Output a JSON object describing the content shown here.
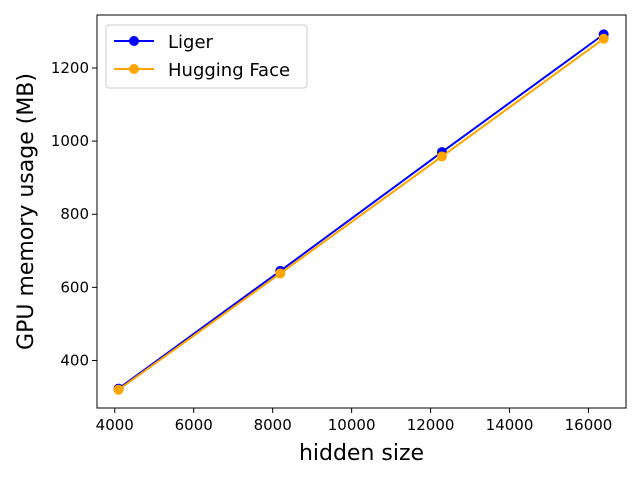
{
  "chart_data": {
    "type": "line",
    "title": "",
    "xlabel": "hidden size",
    "ylabel": "GPU memory usage (MB)",
    "xlim": [
      3550,
      16950
    ],
    "ylim": [
      270,
      1345
    ],
    "xticks": [
      4000,
      6000,
      8000,
      10000,
      12000,
      14000,
      16000
    ],
    "yticks": [
      400,
      600,
      800,
      1000,
      1200
    ],
    "grid": false,
    "legend_position": "top-left",
    "x": [
      4096,
      8192,
      12288,
      16384
    ],
    "series": [
      {
        "name": "Liger",
        "color": "#0000ff",
        "values": [
          323,
          645,
          970,
          1292
        ],
        "marker": "circle"
      },
      {
        "name": "Hugging Face",
        "color": "#ffa500",
        "values": [
          320,
          638,
          958,
          1280
        ],
        "marker": "circle"
      }
    ]
  }
}
